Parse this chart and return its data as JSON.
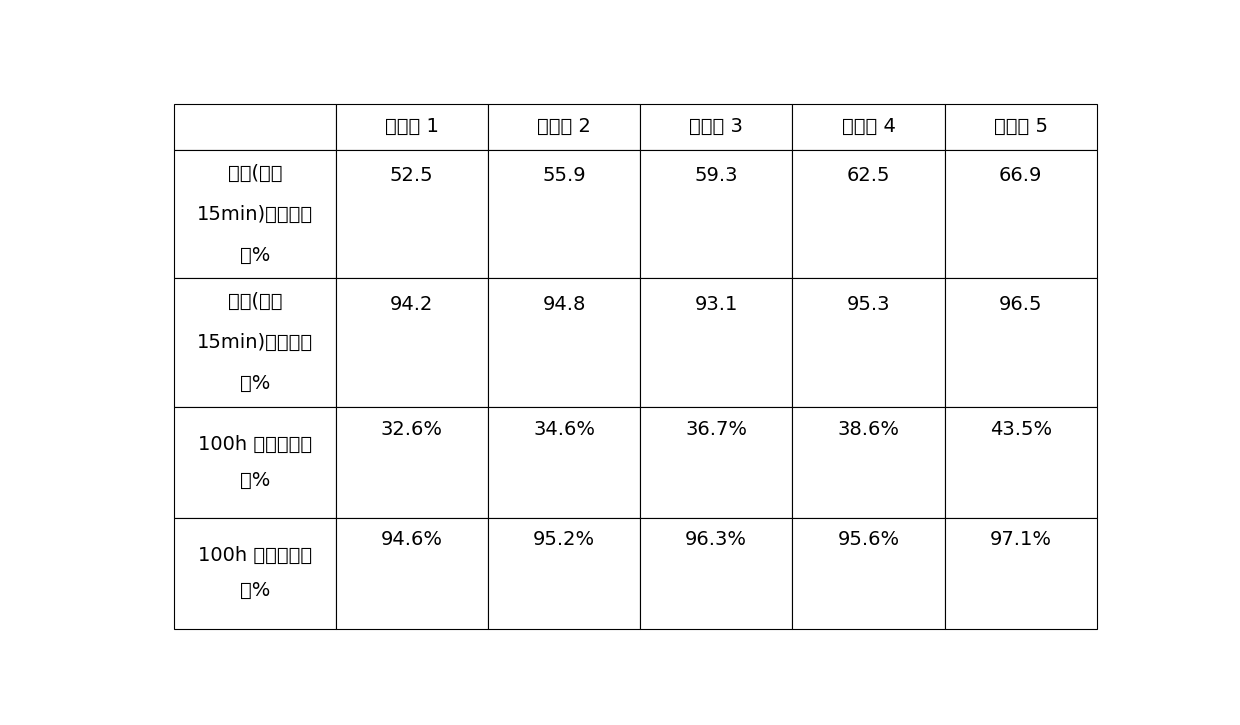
{
  "col_headers": [
    "",
    "实施例 1",
    "实施例 2",
    "实施例 3",
    "实施例 4",
    "实施例 5"
  ],
  "table_data": [
    [
      "52.5",
      "55.9",
      "59.3",
      "62.5",
      "66.9"
    ],
    [
      "94.2",
      "94.8",
      "93.1",
      "95.3",
      "96.5"
    ],
    [
      "32.6%",
      "34.6%",
      "36.7%",
      "38.6%",
      "43.5%"
    ],
    [
      "94.6%",
      "95.2%",
      "96.3%",
      "95.6%",
      "97.1%"
    ]
  ],
  "row_header_lines": [
    [
      "初始(反应",
      "15min)丙烷转化",
      "率%"
    ],
    [
      "初始(反应",
      "15min)丙烯选择",
      "性%"
    ],
    [
      "100h 后丙烷转化",
      "率%"
    ],
    [
      "100h 后丙烯选择",
      "性%"
    ]
  ],
  "background_color": "#ffffff",
  "border_color": "#000000",
  "text_color": "#000000",
  "header_fontsize": 14,
  "cell_fontsize": 14,
  "row_header_fontsize": 14
}
